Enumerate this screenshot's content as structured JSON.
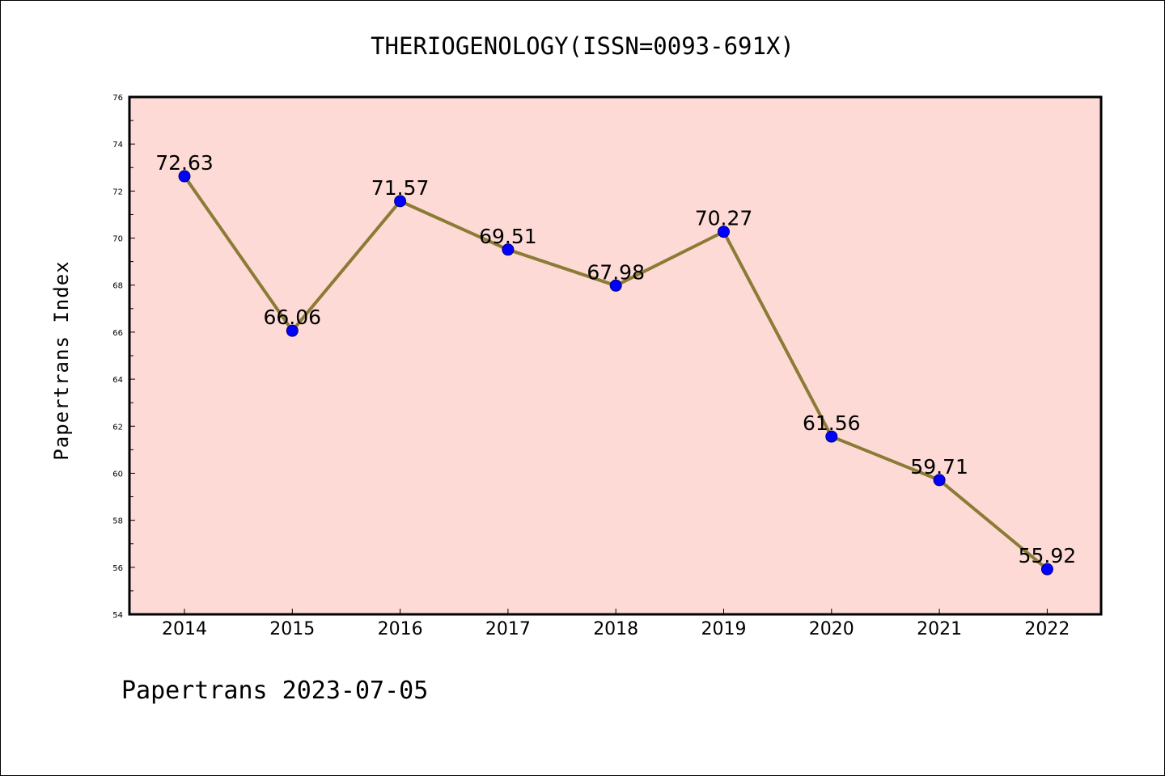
{
  "chart_data": {
    "type": "line",
    "title": "THERIOGENOLOGY(ISSN=0093-691X)",
    "xlabel": "",
    "ylabel": "Papertrans Index",
    "categories": [
      "2014",
      "2015",
      "2016",
      "2017",
      "2018",
      "2019",
      "2020",
      "2021",
      "2022"
    ],
    "series": [
      {
        "values": [
          72.63,
          66.06,
          71.57,
          69.51,
          67.98,
          70.27,
          61.56,
          59.71,
          55.92
        ]
      }
    ],
    "data_labels": [
      "72.63",
      "66.06",
      "71.57",
      "69.51",
      "67.98",
      "70.27",
      "61.56",
      "59.71",
      "55.92"
    ],
    "ylim": [
      54,
      76
    ],
    "yticks": [
      54,
      56,
      58,
      60,
      62,
      64,
      66,
      68,
      70,
      72,
      74,
      76
    ],
    "grid": false,
    "legend": "none",
    "colors": {
      "plot_background": "#fddad6",
      "line": "#8b7b35",
      "marker": "#0000ff",
      "frame": "#000000"
    }
  },
  "footer": "Papertrans 2023-07-05"
}
